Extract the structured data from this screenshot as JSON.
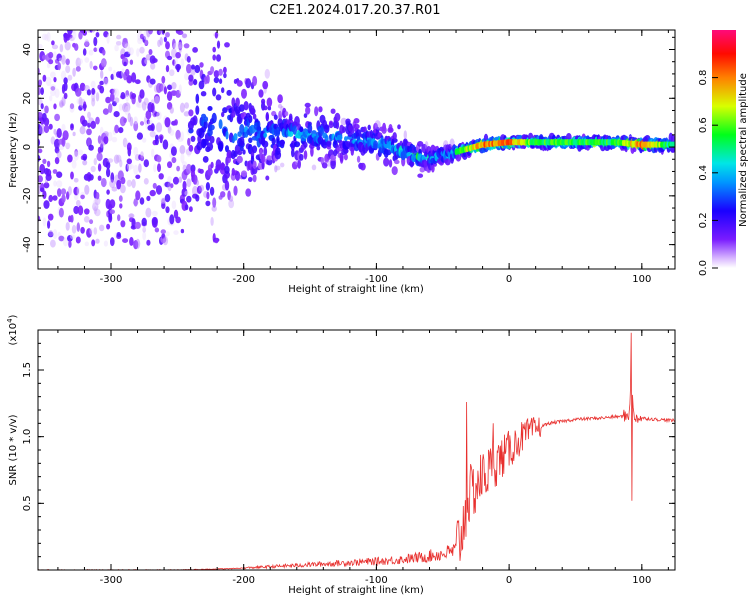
{
  "title": "C2E1.2024.017.20.37.R01",
  "chart_data": [
    {
      "type": "heatmap",
      "subtype": "dynamic spectrum (scatter of colored cells)",
      "xlabel": "Height of straight line (km)",
      "ylabel": "Frequency (Hz)",
      "xlim": [
        -355,
        125
      ],
      "ylim": [
        -50,
        48
      ],
      "xticks": [
        -300,
        -200,
        -100,
        0,
        100
      ],
      "yticks": [
        -40,
        -20,
        0,
        20,
        40
      ],
      "colorbar": {
        "label": "Normalized spectral amplitude",
        "range": [
          0.0,
          1.0
        ],
        "ticks": [
          "0.0",
          "0.2",
          "0.4",
          "0.6",
          "0.8"
        ],
        "colormap": "rainbow (white-violet-blue-cyan-green-yellow-orange-red-magenta)"
      },
      "trace": {
        "description": "central frequency track of strongest spectral amplitude",
        "x": [
          -235,
          -200,
          -160,
          -130,
          -100,
          -80,
          -60,
          -40,
          -20,
          0,
          20,
          50,
          80,
          100,
          125
        ],
        "y": [
          8,
          6,
          5,
          4,
          2,
          -2,
          -5,
          -2,
          1,
          2,
          2,
          2,
          2,
          1,
          1
        ],
        "amplitude": [
          0.2,
          0.25,
          0.3,
          0.3,
          0.35,
          0.4,
          0.4,
          0.5,
          0.8,
          0.8,
          0.55,
          0.55,
          0.55,
          0.8,
          0.45
        ]
      },
      "spread": {
        "description": "frequency half-width of the scattered noise band",
        "x": [
          -355,
          -240,
          -210,
          -170,
          -130,
          -100,
          -70,
          -45,
          -30,
          0,
          125
        ],
        "half_width": [
          48,
          48,
          30,
          14,
          10,
          8,
          6,
          4,
          2,
          2,
          2
        ]
      }
    },
    {
      "type": "line",
      "xlabel": "Height of straight line (km)",
      "ylabel": "SNR (10 * v/v)",
      "y_multiplier": "(x10",
      "y_multiplier_exp": "4",
      "xlim": [
        -355,
        125
      ],
      "ylim": [
        0,
        1.8
      ],
      "xticks": [
        -300,
        -200,
        -100,
        0,
        100
      ],
      "yticks": [
        0.5,
        1.0,
        1.5
      ],
      "ytick_labels": [
        "0.5",
        "1.0",
        "1.5"
      ],
      "series": [
        {
          "color": "#e8302e",
          "x": [
            -355,
            -250,
            -210,
            -190,
            -170,
            -150,
            -130,
            -110,
            -90,
            -70,
            -50,
            -40,
            -35,
            -32,
            -30,
            -20,
            -10,
            0,
            10,
            20,
            30,
            50,
            70,
            80,
            85,
            90,
            92,
            94,
            100,
            110,
            125
          ],
          "y": [
            0.0,
            0.0,
            0.01,
            0.02,
            0.03,
            0.04,
            0.05,
            0.06,
            0.07,
            0.09,
            0.12,
            0.15,
            0.3,
            0.5,
            0.55,
            0.7,
            0.8,
            0.9,
            1.0,
            1.06,
            1.1,
            1.13,
            1.14,
            1.15,
            1.15,
            1.16,
            1.4,
            1.15,
            1.14,
            1.13,
            1.12
          ],
          "spikes": [
            {
              "x": -32,
              "y": 1.26
            },
            {
              "x": -12,
              "y": 1.1
            },
            {
              "x": 92,
              "y": 1.78
            },
            {
              "x": 92.5,
              "y": 0.52
            }
          ]
        }
      ]
    }
  ]
}
